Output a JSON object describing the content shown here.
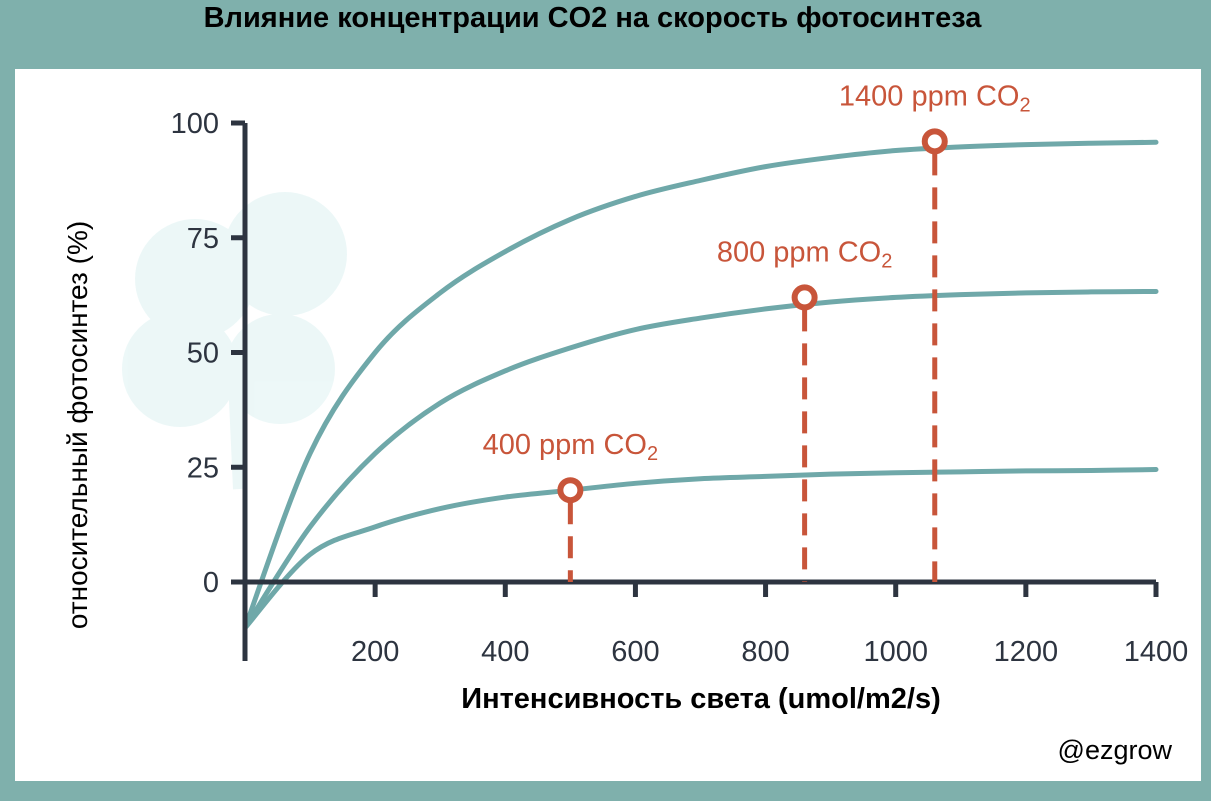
{
  "colors": {
    "background": "#7fb0ac",
    "panel": "#ffffff",
    "axis": "#2d3440",
    "curve": "#6fa8a9",
    "marker": "#c8553a"
  },
  "credit": "@ezgrow",
  "chart_data": {
    "type": "line",
    "title": "Влияние концентрации CO2 на скорость фотосинтеза",
    "xlabel": "Интенсивность света (umol/m2/s)",
    "ylabel": "относительный фотосинтез (%)",
    "xlim": [
      0,
      1400
    ],
    "ylim": [
      0,
      100
    ],
    "xticks": [
      200,
      400,
      600,
      800,
      1000,
      1200,
      1400
    ],
    "yticks": [
      0,
      25,
      50,
      75,
      100
    ],
    "grid": false,
    "series": [
      {
        "x": [
          0,
          100,
          200,
          300,
          400,
          500,
          600,
          700,
          800,
          900,
          1000,
          1100,
          1200,
          1300,
          1400
        ],
        "values": [
          -10,
          6,
          12,
          16,
          18.5,
          20,
          21.5,
          22.5,
          23,
          23.5,
          23.8,
          24,
          24.2,
          24.3,
          24.5
        ]
      },
      {
        "x": [
          0,
          100,
          200,
          300,
          400,
          500,
          600,
          700,
          800,
          900,
          1000,
          1100,
          1200,
          1300,
          1400
        ],
        "values": [
          -10,
          12,
          28,
          39,
          46,
          51,
          55,
          57.5,
          59.5,
          61,
          62,
          62.6,
          63,
          63.2,
          63.3
        ]
      },
      {
        "x": [
          0,
          100,
          200,
          300,
          400,
          500,
          600,
          700,
          800,
          900,
          1000,
          1100,
          1200,
          1300,
          1400
        ],
        "values": [
          -10,
          28,
          50,
          63,
          72,
          79,
          84,
          87.5,
          90.5,
          92.5,
          94,
          94.8,
          95.3,
          95.6,
          95.8
        ]
      }
    ],
    "annotations": [
      {
        "prefix": "400 ppm CO",
        "sub": "2",
        "x": 500,
        "y": 20
      },
      {
        "prefix": "800 ppm CO",
        "sub": "2",
        "x": 860,
        "y": 62
      },
      {
        "prefix": "1400 ppm CO",
        "sub": "2",
        "x": 1060,
        "y": 96
      }
    ]
  }
}
